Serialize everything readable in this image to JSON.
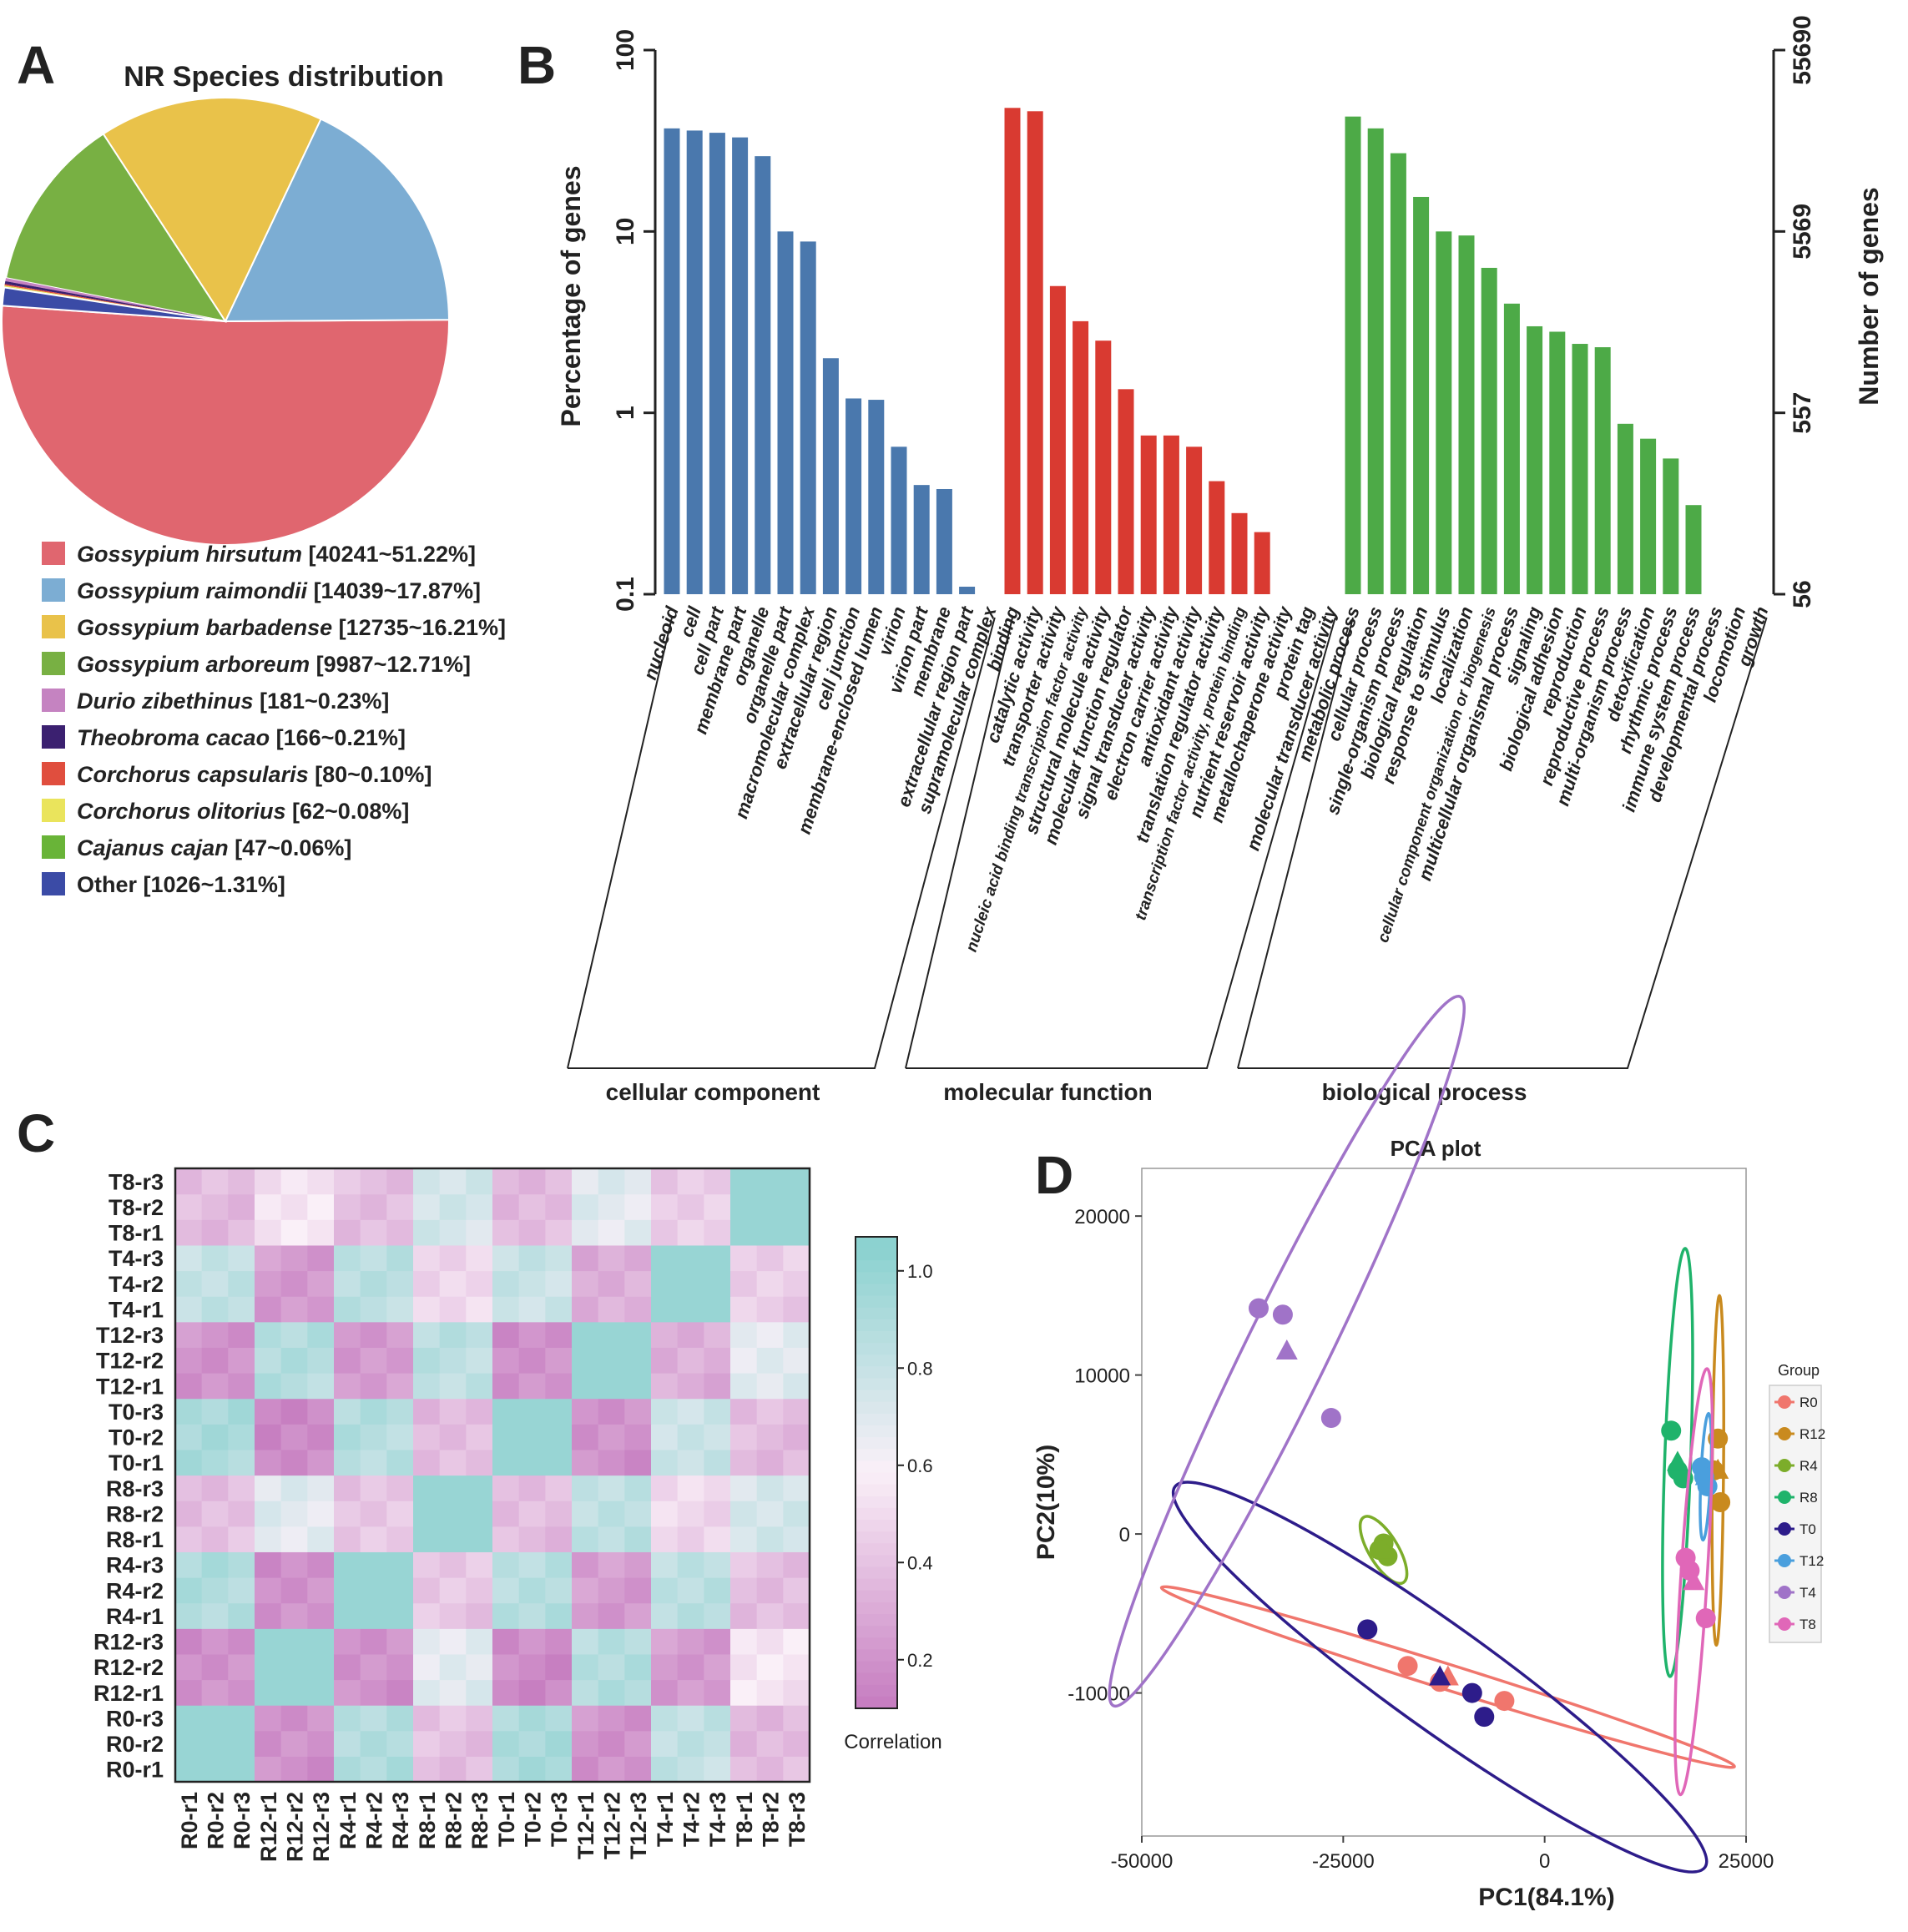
{
  "panels": {
    "a": "A",
    "b": "B",
    "c": "C",
    "d": "D"
  },
  "chart_data": [
    {
      "type": "pie",
      "title": "NR Species distribution",
      "slices": [
        {
          "name": "Gossypium hirsutum",
          "count": "40241",
          "percent": "51.22%",
          "value": 51.22,
          "color": "#e0666f",
          "italic": true
        },
        {
          "name": "Gossypium raimondii",
          "count": "14039",
          "percent": "17.87%",
          "value": 17.87,
          "color": "#7cadd3",
          "italic": true
        },
        {
          "name": "Gossypium barbadense",
          "count": "12735",
          "percent": "16.21%",
          "value": 16.21,
          "color": "#e9c24a",
          "italic": true
        },
        {
          "name": "Gossypium arboreum",
          "count": "9987",
          "percent": "12.71%",
          "value": 12.71,
          "color": "#78b043",
          "italic": true
        },
        {
          "name": "Durio zibethinus",
          "count": "181",
          "percent": "0.23%",
          "value": 0.23,
          "color": "#c583c1",
          "italic": true
        },
        {
          "name": "Theobroma cacao",
          "count": "166",
          "percent": "0.21%",
          "value": 0.21,
          "color": "#3b2070",
          "italic": true
        },
        {
          "name": "Corchorus capsularis",
          "count": "80",
          "percent": "0.10%",
          "value": 0.1,
          "color": "#e04e3e",
          "italic": true
        },
        {
          "name": "Corchorus olitorius",
          "count": "62",
          "percent": "0.08%",
          "value": 0.08,
          "color": "#eae45c",
          "italic": true
        },
        {
          "name": "Cajanus cajan",
          "count": "47",
          "percent": "0.06%",
          "value": 0.06,
          "color": "#69b438",
          "italic": true
        },
        {
          "name": "Other",
          "count": "1026",
          "percent": "1.31%",
          "value": 1.31,
          "color": "#3b4ba6",
          "italic": false
        }
      ]
    },
    {
      "type": "bar",
      "ylabel": "Percentage of genes",
      "y2label": "Number of genes",
      "yscale": "log",
      "ylim": [
        0.1,
        100
      ],
      "yticks": [
        "0.1",
        "1",
        "10",
        "100"
      ],
      "y2ticks": [
        "56",
        "557",
        "5569",
        "55690"
      ],
      "groups": [
        {
          "name": "cellular component",
          "color": "#4a78ad",
          "categories": [
            "nucleoid",
            "cell",
            "cell part",
            "membrane part",
            "organelle",
            "organelle part",
            "macromolecular complex",
            "extracellular region",
            "cell junction",
            "membrane-enclosed lumen",
            "virion",
            "virion part",
            "membrane",
            "extracellular region part",
            "supramolecular complex"
          ],
          "values": [
            37,
            36,
            35,
            33,
            26,
            10,
            8.8,
            2,
            1.2,
            1.18,
            0.65,
            0.4,
            0.38,
            0.11,
            null
          ]
        },
        {
          "name": "molecular function",
          "color": "#d93a31",
          "categories": [
            "binding",
            "catalytic activity",
            "transporter activity",
            "nucleic acid binding transcription factor activity",
            "structural molecule activity",
            "molecular function regulator",
            "signal transducer activity",
            "electron carrier activity",
            "antioxidant activity",
            "translation regulator activity",
            "transcription factor activity, protein binding",
            "nutrient reservoir activity",
            "metallochaperone activity",
            "protein tag",
            "molecular transducer activity"
          ],
          "values": [
            48,
            46,
            5,
            3.2,
            2.5,
            1.35,
            0.75,
            0.75,
            0.65,
            0.42,
            0.28,
            0.22,
            null,
            null,
            null
          ]
        },
        {
          "name": "biological process",
          "color": "#4daa47",
          "categories": [
            "metabolic process",
            "cellular process",
            "single-organism process",
            "biological regulation",
            "response to stimulus",
            "localization",
            "cellular component organization or biogenesis",
            "multicellular organismal process",
            "signaling",
            "biological adhesion",
            "reproduction",
            "reproductive process",
            "multi-organism process",
            "detoxification",
            "rhythmic process",
            "immune system process",
            "developmental process",
            "locomotion",
            "growth"
          ],
          "values": [
            43,
            37,
            27,
            15.5,
            10,
            9.5,
            6.3,
            4,
            3,
            2.8,
            2.4,
            2.3,
            0.87,
            0.72,
            0.56,
            0.31,
            null,
            null,
            null
          ]
        }
      ]
    },
    {
      "type": "heatmap",
      "legend_title": "Correlation",
      "legend_ticks": [
        "0.2",
        "0.4",
        "0.6",
        "0.8",
        "1.0"
      ],
      "samples": [
        "R0-r1",
        "R0-r2",
        "R0-r3",
        "R12-r1",
        "R12-r2",
        "R12-r3",
        "R4-r1",
        "R4-r2",
        "R4-r3",
        "R8-r1",
        "R8-r2",
        "R8-r3",
        "T0-r1",
        "T0-r2",
        "T0-r3",
        "T12-r1",
        "T12-r2",
        "T12-r3",
        "T4-r1",
        "T4-r2",
        "T4-r3",
        "T8-r1",
        "T8-r2",
        "T8-r3"
      ],
      "group_matrix": [
        [
          1.0,
          0.2,
          0.9,
          0.4,
          0.92,
          0.22,
          0.82,
          0.38
        ],
        [
          0.2,
          1.0,
          0.2,
          0.7,
          0.18,
          0.88,
          0.25,
          0.55
        ],
        [
          0.9,
          0.2,
          1.0,
          0.42,
          0.88,
          0.25,
          0.85,
          0.4
        ],
        [
          0.4,
          0.7,
          0.42,
          1.0,
          0.38,
          0.85,
          0.5,
          0.75
        ],
        [
          0.92,
          0.18,
          0.88,
          0.38,
          1.0,
          0.2,
          0.8,
          0.38
        ],
        [
          0.22,
          0.88,
          0.25,
          0.85,
          0.2,
          1.0,
          0.32,
          0.7
        ],
        [
          0.82,
          0.25,
          0.85,
          0.5,
          0.8,
          0.32,
          1.0,
          0.45
        ],
        [
          0.38,
          0.55,
          0.4,
          0.75,
          0.38,
          0.7,
          0.45,
          1.0
        ]
      ]
    },
    {
      "type": "scatter",
      "title": "PCA plot",
      "xlabel": "PC1(84.1%)",
      "ylabel": "PC2(10%)",
      "xlim": [
        -50000,
        25000
      ],
      "ylim": [
        -19000,
        23000
      ],
      "xticks": [
        "-50000",
        "-25000",
        "0",
        "25000"
      ],
      "yticks": [
        "-10000",
        "0",
        "10000",
        "20000"
      ],
      "legend_title": "Group",
      "series": [
        {
          "name": "R0",
          "color": "#f0766d",
          "points": [
            [
              -17000,
              -8300
            ],
            [
              -13000,
              -9300
            ],
            [
              -5000,
              -10500
            ]
          ],
          "centroid": [
            -12000,
            -9000
          ],
          "ellipse": {
            "rx": 36000,
            "ry": 800,
            "angle": -9
          }
        },
        {
          "name": "R12",
          "color": "#c98a1e",
          "points": [
            [
              21500,
              6000
            ],
            [
              21800,
              2000
            ],
            [
              21000,
              4000
            ]
          ],
          "centroid": [
            21500,
            4000
          ],
          "ellipse": {
            "rx": 11000,
            "ry": 700,
            "angle": 89
          }
        },
        {
          "name": "R4",
          "color": "#7cad2a",
          "points": [
            [
              -20000,
              -600
            ],
            [
              -19500,
              -1400
            ],
            [
              -20500,
              -1000
            ]
          ],
          "centroid": [
            -20000,
            -1000
          ],
          "ellipse": {
            "rx": 3200,
            "ry": 1100,
            "angle": -40
          }
        },
        {
          "name": "R8",
          "color": "#1fb36b",
          "points": [
            [
              15700,
              6500
            ],
            [
              16500,
              4000
            ],
            [
              17200,
              3500
            ]
          ],
          "centroid": [
            16500,
            4500
          ],
          "ellipse": {
            "rx": 13500,
            "ry": 1600,
            "angle": 86
          }
        },
        {
          "name": "T0",
          "color": "#2d1c8a",
          "points": [
            [
              -22000,
              -6000
            ],
            [
              -9000,
              -10000
            ],
            [
              -7500,
              -11500
            ]
          ],
          "centroid": [
            -13000,
            -9000
          ],
          "ellipse": {
            "rx": 35000,
            "ry": 3400,
            "angle": -20
          }
        },
        {
          "name": "T12",
          "color": "#4a9fdd",
          "points": [
            [
              19500,
              4200
            ],
            [
              20200,
              3000
            ],
            [
              19800,
              3600
            ]
          ],
          "centroid": [
            20000,
            3600
          ],
          "ellipse": {
            "rx": 4000,
            "ry": 600,
            "angle": 85
          }
        },
        {
          "name": "T4",
          "color": "#a073c8",
          "points": [
            [
              -35500,
              14200
            ],
            [
              -32500,
              13800
            ],
            [
              -26500,
              7300
            ]
          ],
          "centroid": [
            -32000,
            11500
          ],
          "ellipse": {
            "rx": 31000,
            "ry": 3300,
            "angle": 46
          }
        },
        {
          "name": "T8",
          "color": "#e067b8",
          "points": [
            [
              17500,
              -1500
            ],
            [
              18000,
              -2300
            ],
            [
              20000,
              -5300
            ]
          ],
          "centroid": [
            18500,
            -3000
          ],
          "ellipse": {
            "rx": 13500,
            "ry": 1600,
            "angle": 83
          }
        }
      ]
    }
  ]
}
